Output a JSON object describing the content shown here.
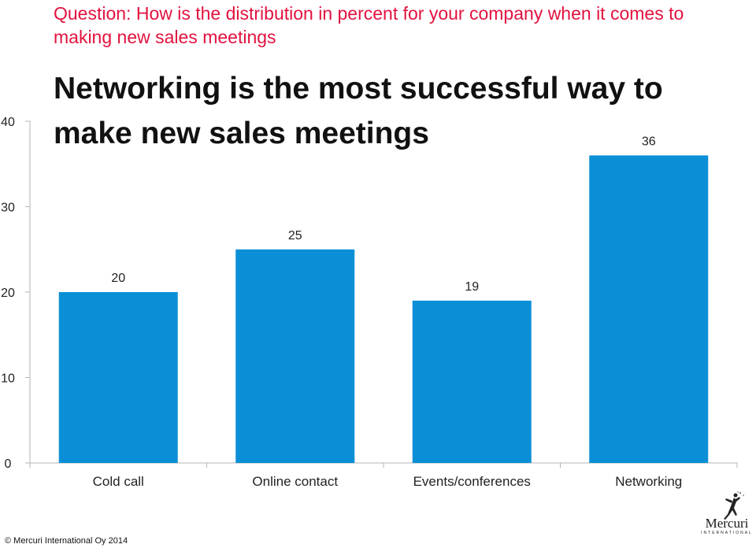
{
  "header": {
    "question": "Question: How is the distribution in percent for your company when it comes to making new sales meetings",
    "headline": "Networking is the most successful way to make new sales meetings"
  },
  "chart_data": {
    "type": "bar",
    "categories": [
      "Cold call",
      "Online contact",
      "Events/conferences",
      "Networking"
    ],
    "values": [
      20,
      25,
      19,
      36
    ],
    "data_labels": [
      "20",
      "25",
      "19",
      "36"
    ],
    "ylim": [
      0,
      40
    ],
    "yticks": [
      "0",
      "10",
      "20",
      "30",
      "40"
    ],
    "grid": false,
    "bar_color": "#0a8fd6",
    "xlabel": "",
    "ylabel": ""
  },
  "footer": {
    "copyright": "© Mercuri International Oy 2014",
    "logo_text": "Mercuri",
    "logo_subtext": "INTERNATIONAL"
  },
  "colors": {
    "question": "#e2123f",
    "headline": "#111111",
    "bar": "#0a8fd6"
  }
}
